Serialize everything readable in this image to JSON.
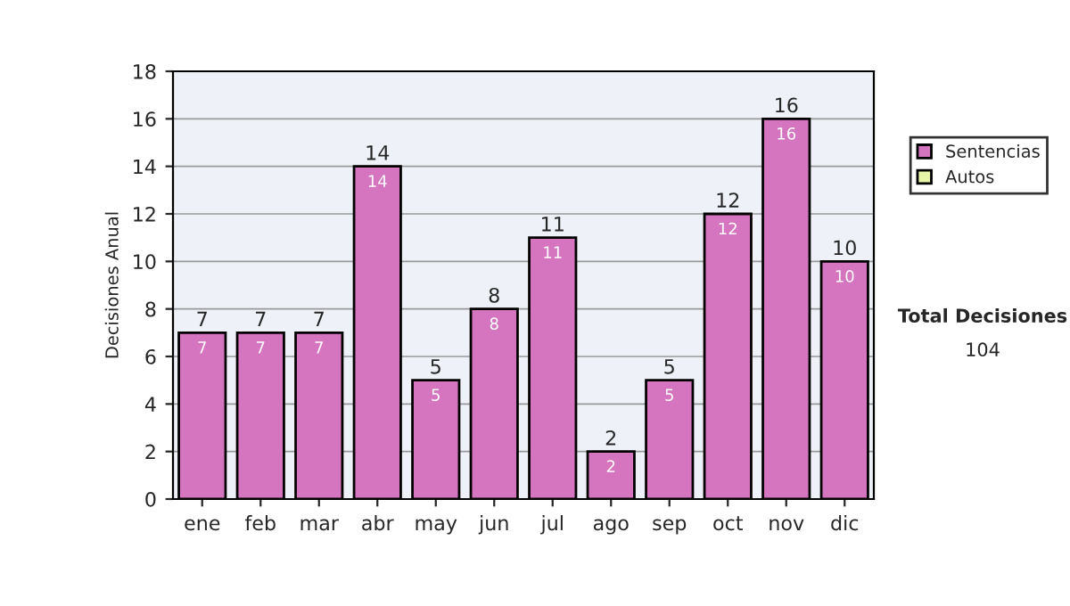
{
  "chart_data": {
    "type": "bar",
    "ylabel": "Decisiones Anual",
    "categories": [
      "ene",
      "feb",
      "mar",
      "abr",
      "may",
      "jun",
      "jul",
      "ago",
      "sep",
      "oct",
      "nov",
      "dic"
    ],
    "series": [
      {
        "name": "Sentencias",
        "color": "#d575c0",
        "values": [
          7,
          7,
          7,
          14,
          5,
          8,
          11,
          2,
          5,
          12,
          16,
          10
        ],
        "value_labels": [
          "7",
          "7",
          "7",
          "14",
          "5",
          "8",
          "11",
          "2",
          "5",
          "12",
          "16",
          "10"
        ]
      },
      {
        "name": "Autos",
        "color": "#e6f5a8",
        "values": [
          null,
          null,
          null,
          null,
          null,
          null,
          null,
          null,
          null,
          null,
          null,
          null
        ]
      }
    ],
    "stacked": true,
    "totals": [
      "7",
      "7",
      "7",
      "14",
      "5",
      "8",
      "11",
      "2",
      "5",
      "12",
      "16",
      "10"
    ],
    "ylim": [
      0,
      18
    ],
    "yticks": [
      0,
      2,
      4,
      6,
      8,
      10,
      12,
      14,
      16,
      18
    ],
    "grid": "y",
    "legend": "right",
    "annotations": [
      "Total Decisiones",
      "104"
    ]
  }
}
